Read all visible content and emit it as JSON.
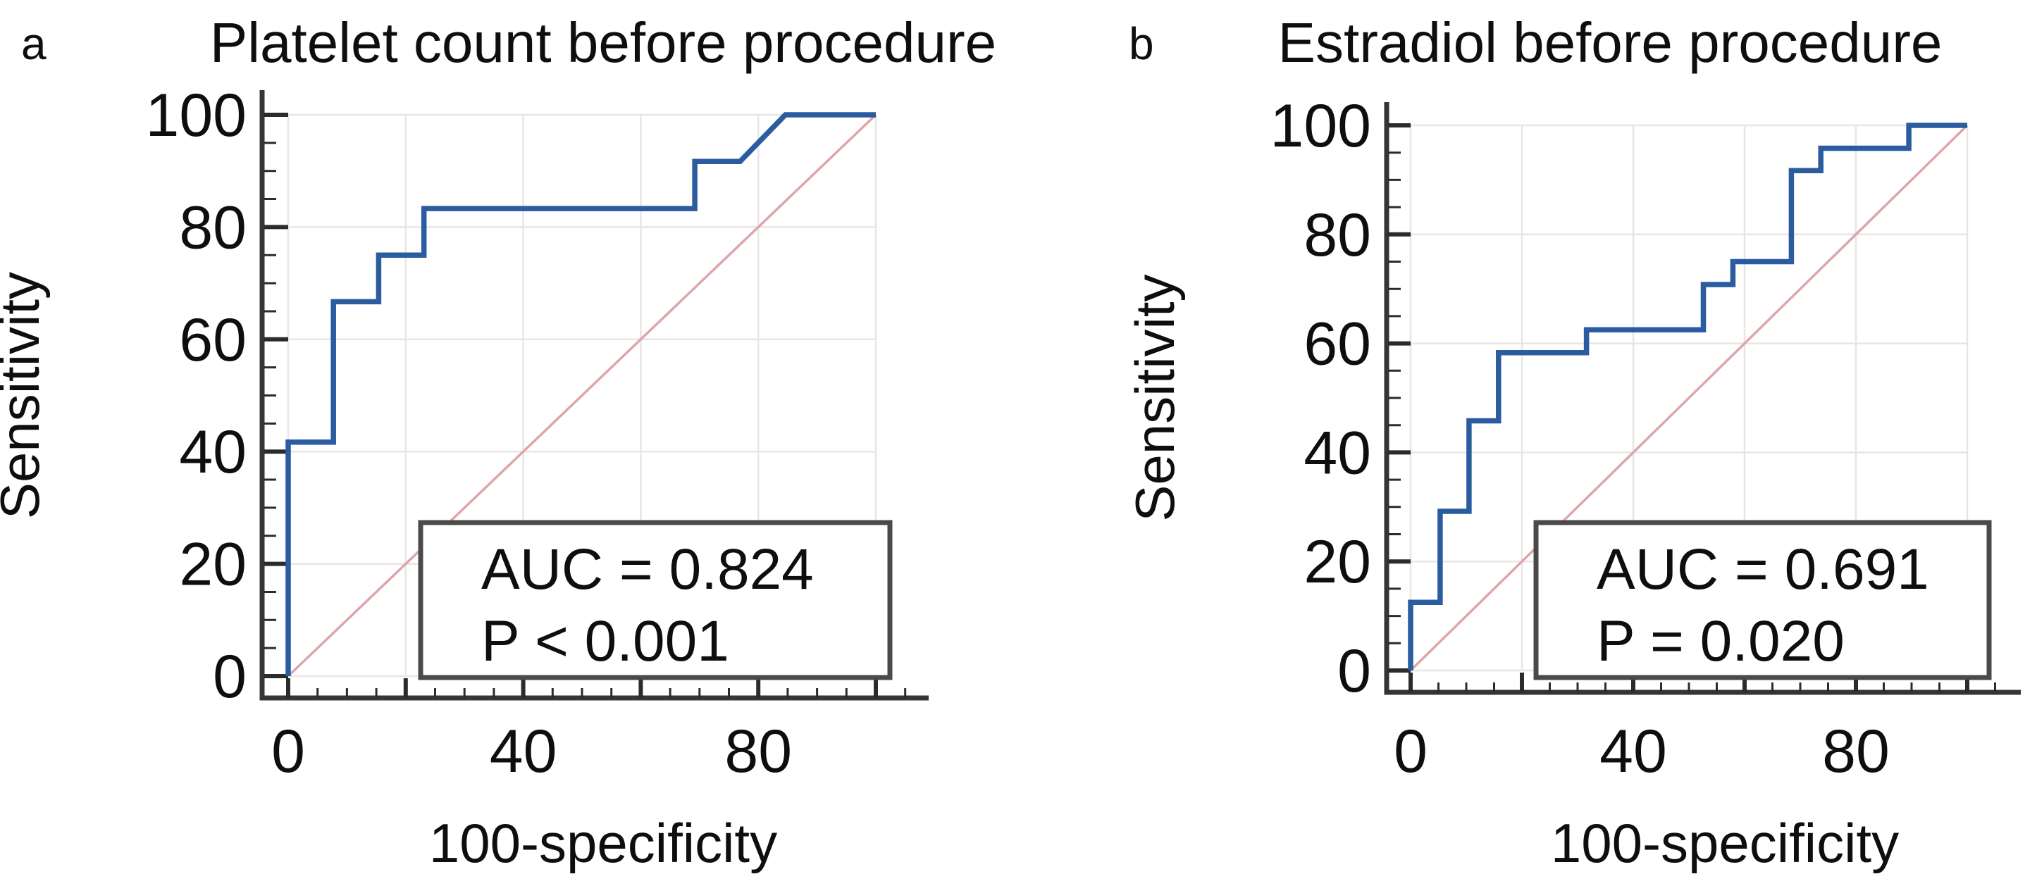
{
  "figure": {
    "background": "#ffffff",
    "colors": {
      "curve": "#2a5c9f",
      "diagonal": "#dfa5a9",
      "grid": "#e9e5e5",
      "axis": "#353535",
      "tick": "#2b2b2b",
      "text": "#0e0e0e",
      "box_border": "#4a4a4a",
      "box_fill": "#ffffff"
    }
  },
  "chart_data": [
    {
      "panel_letter": "a",
      "type": "line",
      "title": "Platelet count before procedure",
      "xlabel": "100-specificity",
      "ylabel": "Sensitivity",
      "xlim": [
        0,
        100
      ],
      "ylim": [
        0,
        100
      ],
      "x_tick_labels": [
        0,
        40,
        80
      ],
      "y_tick_labels": [
        0,
        20,
        40,
        60,
        80,
        100
      ],
      "major_step": 20,
      "minor_step": 5,
      "grid": true,
      "annotation": {
        "auc": "AUC = 0.824",
        "p": "P < 0.001"
      },
      "series": [
        {
          "name": "ROC curve",
          "points": [
            [
              0,
              0
            ],
            [
              0,
              41.7
            ],
            [
              7.7,
              41.7
            ],
            [
              7.7,
              66.7
            ],
            [
              15.4,
              66.7
            ],
            [
              15.4,
              75
            ],
            [
              23.1,
              75
            ],
            [
              23.1,
              83.3
            ],
            [
              69.2,
              83.3
            ],
            [
              69.2,
              91.7
            ],
            [
              76.9,
              91.7
            ],
            [
              84.6,
              100
            ],
            [
              100,
              100
            ]
          ]
        },
        {
          "name": "reference diagonal",
          "points": [
            [
              0,
              0
            ],
            [
              100,
              100
            ]
          ]
        }
      ]
    },
    {
      "panel_letter": "b",
      "type": "line",
      "title": "Estradiol before procedure",
      "xlabel": "100-specificity",
      "ylabel": "Sensitivity",
      "xlim": [
        0,
        100
      ],
      "ylim": [
        0,
        100
      ],
      "x_tick_labels": [
        0,
        40,
        80
      ],
      "y_tick_labels": [
        0,
        20,
        40,
        60,
        80,
        100
      ],
      "major_step": 20,
      "minor_step": 5,
      "grid": true,
      "annotation": {
        "auc": "AUC = 0.691",
        "p": "P = 0.020"
      },
      "series": [
        {
          "name": "ROC curve",
          "points": [
            [
              0,
              0
            ],
            [
              0,
              12.5
            ],
            [
              5.3,
              12.5
            ],
            [
              5.3,
              29.2
            ],
            [
              10.5,
              29.2
            ],
            [
              10.5,
              45.8
            ],
            [
              15.8,
              45.8
            ],
            [
              15.8,
              58.3
            ],
            [
              31.6,
              58.3
            ],
            [
              31.6,
              62.5
            ],
            [
              52.6,
              62.5
            ],
            [
              52.6,
              70.8
            ],
            [
              57.9,
              70.8
            ],
            [
              57.9,
              75
            ],
            [
              68.4,
              75
            ],
            [
              68.4,
              91.7
            ],
            [
              73.7,
              91.7
            ],
            [
              73.7,
              95.8
            ],
            [
              89.5,
              95.8
            ],
            [
              89.5,
              100
            ],
            [
              100,
              100
            ]
          ]
        },
        {
          "name": "reference diagonal",
          "points": [
            [
              0,
              0
            ],
            [
              100,
              100
            ]
          ]
        }
      ]
    }
  ]
}
